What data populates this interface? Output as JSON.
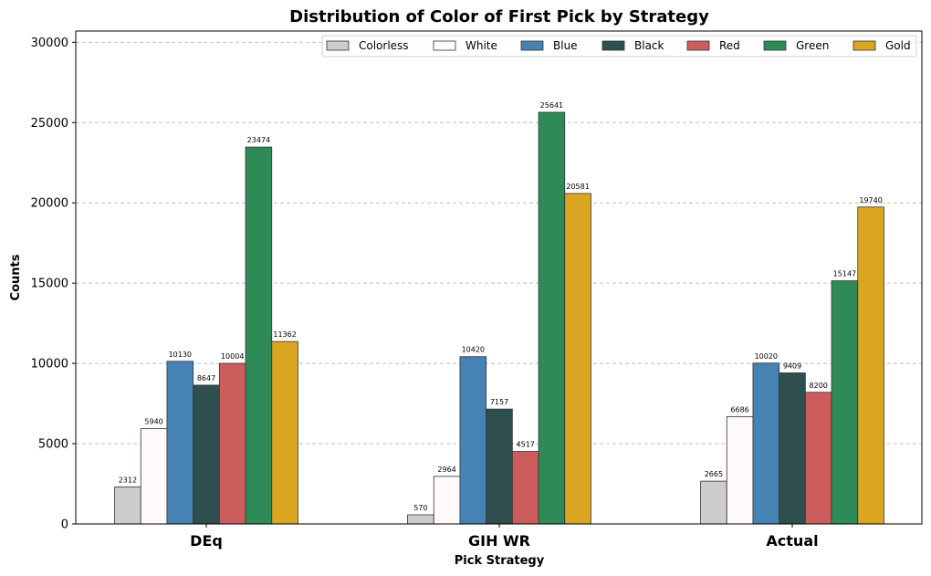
{
  "chart_data": {
    "type": "bar",
    "title": "Distribution of Color of First Pick by Strategy",
    "xlabel": "Pick Strategy",
    "ylabel": "Counts",
    "categories": [
      "DEq",
      "GIH WR",
      "Actual"
    ],
    "ylim": [
      0,
      30700
    ],
    "yticks": [
      0,
      5000,
      10000,
      15000,
      20000,
      25000,
      30000
    ],
    "grid": "y-dashed",
    "legend_position": "top-right",
    "series": [
      {
        "name": "Colorless",
        "color": "#cccccc",
        "values": [
          2312,
          570,
          2665
        ]
      },
      {
        "name": "White",
        "color": "#fffafa",
        "values": [
          5940,
          2964,
          6686
        ]
      },
      {
        "name": "Blue",
        "color": "#4682b4",
        "values": [
          10130,
          10420,
          10020
        ]
      },
      {
        "name": "Black",
        "color": "#2f4f4f",
        "values": [
          8647,
          7157,
          9409
        ]
      },
      {
        "name": "Red",
        "color": "#cd5c5c",
        "values": [
          10004,
          4517,
          8200
        ]
      },
      {
        "name": "Green",
        "color": "#2e8b57",
        "values": [
          23474,
          25641,
          15147
        ]
      },
      {
        "name": "Gold",
        "color": "#daa520",
        "values": [
          11362,
          20581,
          19740
        ]
      }
    ]
  }
}
